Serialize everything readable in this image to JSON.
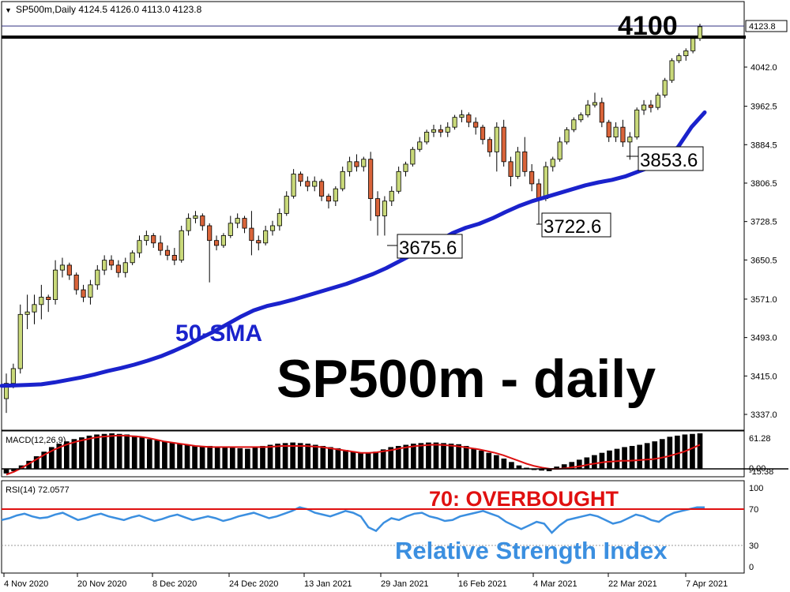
{
  "window": {
    "symbol_header": "SP500m,Daily  4124.5 4126.0 4113.0 4123.8",
    "current_price_tag": "4123.8"
  },
  "colors": {
    "bull_candle": "#c9d97a",
    "bear_candle": "#d9643a",
    "sma_line": "#1a22cc",
    "macd_hist": "#000000",
    "macd_signal": "#dd1111",
    "rsi_line": "#3b8fe0",
    "overbought_line": "#e01010",
    "title_text": "#000000",
    "rsi_title_text": "#3b8fe0",
    "sma_label_text": "#1a22cc"
  },
  "annotations": {
    "level_label": "4100",
    "big_title": "SP500m - daily",
    "sma_label": "50-SMA",
    "overbought_label": "70: OVERBOUGHT",
    "rsi_title": "Relative Strength Index",
    "low_labels": [
      "3675.6",
      "3722.6",
      "3853.6"
    ]
  },
  "chart_data": [
    {
      "type": "candlestick",
      "title": "SP500m - daily",
      "price_ticks": [
        "4042.0",
        "3962.5",
        "3884.5",
        "3806.5",
        "3728.5",
        "3650.5",
        "3571.0",
        "3493.0",
        "3415.0",
        "3337.0"
      ],
      "x_ticks": [
        "4 Nov 2020",
        "20 Nov 2020",
        "8 Dec 2020",
        "24 Dec 2020",
        "13 Jan 2021",
        "29 Jan 2021",
        "16 Feb 2021",
        "4 Mar 2021",
        "22 Mar 2021",
        "7 Apr 2021"
      ],
      "horizontal_level": 4100,
      "last_price": 4123.8,
      "ylim": [
        3300,
        4160
      ],
      "candles_ohlc": [
        [
          3369,
          3420,
          3340,
          3400
        ],
        [
          3400,
          3440,
          3390,
          3430
        ],
        [
          3430,
          3560,
          3420,
          3540
        ],
        [
          3540,
          3580,
          3510,
          3545
        ],
        [
          3545,
          3580,
          3520,
          3560
        ],
        [
          3560,
          3600,
          3530,
          3575
        ],
        [
          3575,
          3580,
          3545,
          3570
        ],
        [
          3570,
          3650,
          3560,
          3630
        ],
        [
          3630,
          3655,
          3615,
          3640
        ],
        [
          3640,
          3645,
          3610,
          3620
        ],
        [
          3620,
          3625,
          3580,
          3590
        ],
        [
          3590,
          3600,
          3565,
          3575
        ],
        [
          3575,
          3610,
          3560,
          3600
        ],
        [
          3600,
          3640,
          3590,
          3630
        ],
        [
          3630,
          3660,
          3620,
          3650
        ],
        [
          3650,
          3660,
          3630,
          3640
        ],
        [
          3640,
          3650,
          3615,
          3625
        ],
        [
          3625,
          3655,
          3615,
          3645
        ],
        [
          3645,
          3670,
          3640,
          3665
        ],
        [
          3665,
          3700,
          3655,
          3690
        ],
        [
          3690,
          3710,
          3680,
          3700
        ],
        [
          3700,
          3705,
          3675,
          3685
        ],
        [
          3685,
          3700,
          3660,
          3670
        ],
        [
          3670,
          3680,
          3650,
          3660
        ],
        [
          3660,
          3675,
          3640,
          3650
        ],
        [
          3650,
          3720,
          3645,
          3710
        ],
        [
          3710,
          3745,
          3700,
          3735
        ],
        [
          3735,
          3750,
          3725,
          3740
        ],
        [
          3740,
          3745,
          3710,
          3720
        ],
        [
          3720,
          3725,
          3605,
          3690
        ],
        [
          3690,
          3700,
          3670,
          3680
        ],
        [
          3680,
          3705,
          3675,
          3700
        ],
        [
          3700,
          3740,
          3695,
          3725
        ],
        [
          3725,
          3745,
          3715,
          3735
        ],
        [
          3735,
          3740,
          3705,
          3715
        ],
        [
          3715,
          3750,
          3660,
          3690
        ],
        [
          3690,
          3700,
          3670,
          3685
        ],
        [
          3685,
          3720,
          3680,
          3710
        ],
        [
          3710,
          3730,
          3700,
          3720
        ],
        [
          3720,
          3755,
          3710,
          3745
        ],
        [
          3745,
          3790,
          3740,
          3780
        ],
        [
          3780,
          3835,
          3775,
          3825
        ],
        [
          3825,
          3830,
          3800,
          3810
        ],
        [
          3810,
          3820,
          3790,
          3800
        ],
        [
          3800,
          3820,
          3790,
          3810
        ],
        [
          3810,
          3815,
          3770,
          3780
        ],
        [
          3780,
          3785,
          3755,
          3770
        ],
        [
          3770,
          3800,
          3760,
          3795
        ],
        [
          3795,
          3840,
          3790,
          3830
        ],
        [
          3830,
          3860,
          3820,
          3850
        ],
        [
          3850,
          3865,
          3830,
          3840
        ],
        [
          3840,
          3860,
          3830,
          3855
        ],
        [
          3855,
          3870,
          3730,
          3775
        ],
        [
          3775,
          3790,
          3700,
          3740
        ],
        [
          3740,
          3780,
          3700,
          3770
        ],
        [
          3770,
          3800,
          3760,
          3790
        ],
        [
          3790,
          3840,
          3785,
          3830
        ],
        [
          3830,
          3850,
          3820,
          3845
        ],
        [
          3845,
          3880,
          3840,
          3875
        ],
        [
          3875,
          3900,
          3870,
          3890
        ],
        [
          3890,
          3915,
          3885,
          3910
        ],
        [
          3910,
          3925,
          3900,
          3915
        ],
        [
          3915,
          3925,
          3900,
          3910
        ],
        [
          3910,
          3930,
          3900,
          3920
        ],
        [
          3920,
          3945,
          3915,
          3940
        ],
        [
          3940,
          3955,
          3930,
          3945
        ],
        [
          3945,
          3950,
          3920,
          3930
        ],
        [
          3930,
          3940,
          3905,
          3920
        ],
        [
          3920,
          3925,
          3885,
          3895
        ],
        [
          3895,
          3900,
          3860,
          3870
        ],
        [
          3870,
          3930,
          3830,
          3920
        ],
        [
          3920,
          3935,
          3840,
          3850
        ],
        [
          3850,
          3860,
          3800,
          3820
        ],
        [
          3820,
          3880,
          3815,
          3870
        ],
        [
          3870,
          3900,
          3820,
          3830
        ],
        [
          3830,
          3845,
          3790,
          3805
        ],
        [
          3805,
          3815,
          3723,
          3775
        ],
        [
          3775,
          3850,
          3770,
          3840
        ],
        [
          3840,
          3860,
          3830,
          3855
        ],
        [
          3855,
          3900,
          3850,
          3890
        ],
        [
          3890,
          3920,
          3885,
          3915
        ],
        [
          3915,
          3940,
          3910,
          3935
        ],
        [
          3935,
          3950,
          3930,
          3945
        ],
        [
          3945,
          3975,
          3940,
          3965
        ],
        [
          3965,
          3990,
          3960,
          3970
        ],
        [
          3970,
          3980,
          3920,
          3930
        ],
        [
          3930,
          3935,
          3890,
          3900
        ],
        [
          3900,
          3930,
          3890,
          3920
        ],
        [
          3920,
          3935,
          3880,
          3890
        ],
        [
          3890,
          3910,
          3854,
          3900
        ],
        [
          3900,
          3960,
          3895,
          3955
        ],
        [
          3955,
          3975,
          3945,
          3965
        ],
        [
          3965,
          3975,
          3950,
          3960
        ],
        [
          3960,
          3990,
          3955,
          3985
        ],
        [
          3985,
          4020,
          3980,
          4015
        ],
        [
          4015,
          4060,
          4010,
          4055
        ],
        [
          4055,
          4070,
          4050,
          4065
        ],
        [
          4065,
          4080,
          4055,
          4075
        ],
        [
          4075,
          4105,
          4070,
          4100
        ],
        [
          4100,
          4130,
          4095,
          4124
        ]
      ],
      "sma50": [
        3395,
        3396,
        3397,
        3398,
        3402,
        3407,
        3412,
        3418,
        3425,
        3431,
        3438,
        3446,
        3455,
        3466,
        3478,
        3492,
        3505,
        3520,
        3535,
        3548,
        3557,
        3563,
        3570,
        3578,
        3586,
        3594,
        3602,
        3612,
        3622,
        3634,
        3648,
        3662,
        3676,
        3690,
        3705,
        3716,
        3724,
        3735,
        3748,
        3760,
        3770,
        3778,
        3786,
        3794,
        3802,
        3808,
        3813,
        3820,
        3830,
        3840,
        3855,
        3880,
        3920,
        3950
      ],
      "macd_ticks": [
        "61.28",
        "0.00",
        "-15.38"
      ],
      "macd_hist": [
        -8,
        -4,
        6,
        14,
        22,
        30,
        38,
        44,
        48,
        52,
        55,
        58,
        60,
        61,
        62,
        61,
        60,
        58,
        55,
        52,
        50,
        48,
        46,
        44,
        42,
        40,
        40,
        40,
        39,
        38,
        37,
        36,
        35,
        38,
        40,
        42,
        44,
        45,
        46,
        45,
        44,
        42,
        40,
        38,
        36,
        33,
        30,
        28,
        27,
        30,
        34,
        38,
        40,
        42,
        44,
        45,
        46,
        46,
        45,
        44,
        43,
        40,
        36,
        32,
        28,
        24,
        18,
        12,
        6,
        2,
        -2,
        -3,
        -4,
        4,
        8,
        12,
        16,
        20,
        24,
        28,
        32,
        35,
        38,
        40,
        42,
        45,
        48,
        52,
        56,
        58,
        60,
        61,
        62
      ],
      "macd_signal": [
        -10,
        -5,
        2,
        10,
        18,
        26,
        33,
        39,
        44,
        48,
        51,
        54,
        56,
        57,
        58,
        58,
        57,
        56,
        54,
        51,
        48,
        46,
        44,
        42,
        40,
        39,
        38,
        38,
        38,
        38,
        38,
        38,
        38,
        38,
        39,
        40,
        40,
        40,
        40,
        39,
        38,
        36,
        34,
        32,
        30,
        28,
        28,
        29,
        31,
        33,
        36,
        38,
        40,
        41,
        42,
        42,
        41,
        40,
        38,
        36,
        34,
        31,
        28,
        24,
        19,
        14,
        9,
        5,
        2,
        0,
        0,
        1,
        3,
        5,
        8,
        10,
        12,
        13,
        14,
        14,
        15,
        16,
        17,
        19,
        22,
        26,
        30,
        36,
        42
      ],
      "rsi_ticks": [
        "100",
        "70",
        "30",
        "0"
      ],
      "rsi_levels": [
        70,
        30
      ],
      "rsi_last": 72.0577,
      "rsi": [
        58,
        60,
        63,
        65,
        62,
        60,
        61,
        64,
        66,
        62,
        58,
        60,
        63,
        65,
        62,
        60,
        58,
        61,
        63,
        60,
        57,
        59,
        62,
        64,
        61,
        58,
        60,
        62,
        60,
        57,
        59,
        62,
        64,
        66,
        63,
        60,
        62,
        65,
        68,
        72,
        70,
        66,
        64,
        62,
        65,
        68,
        66,
        62,
        50,
        46,
        55,
        60,
        58,
        62,
        65,
        66,
        62,
        60,
        57,
        58,
        62,
        64,
        66,
        68,
        65,
        62,
        56,
        52,
        48,
        52,
        56,
        54,
        44,
        52,
        58,
        60,
        62,
        64,
        62,
        58,
        54,
        56,
        60,
        64,
        62,
        58,
        56,
        62,
        66,
        68,
        70,
        72,
        72
      ]
    }
  ]
}
